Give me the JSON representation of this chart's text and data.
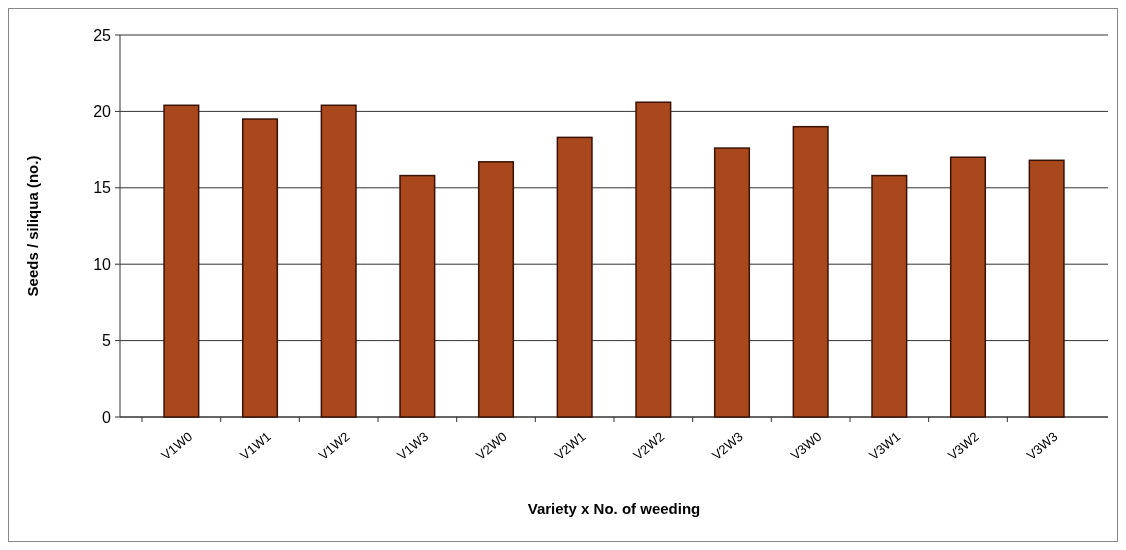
{
  "chart_data": {
    "type": "bar",
    "xlabel": "Variety x No. of weeding",
    "ylabel": "Seeds / siliqua (no.)",
    "categories": [
      "V1W0",
      "V1W1",
      "V1W2",
      "V1W3",
      "V2W0",
      "V2W1",
      "V2W2",
      "V2W3",
      "V3W0",
      "V3W1",
      "V3W2",
      "V3W3"
    ],
    "series": [
      {
        "color": "#a8481c",
        "values": [
          20.4,
          19.5,
          20.4,
          15.8,
          16.7,
          18.3,
          20.6,
          17.6,
          19.0,
          15.8,
          17.0,
          16.8
        ]
      }
    ],
    "ylim": [
      0,
      25
    ],
    "yticks": [
      0,
      5,
      10,
      15,
      20,
      25
    ],
    "grid": "y"
  }
}
